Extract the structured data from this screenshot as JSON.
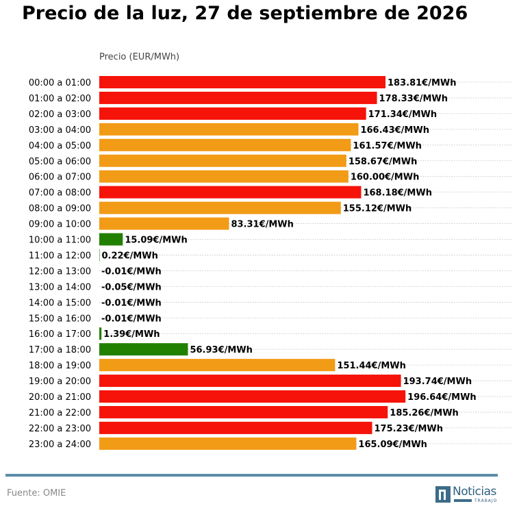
{
  "header": {
    "title": "Precio de la luz, 27 de septiembre de 2026"
  },
  "footer": {
    "source": "Fuente: OMIE",
    "logo_text": "Noticias",
    "logo_subtext": "TRABAJO"
  },
  "colors": {
    "high": "#f5130a",
    "mid": "#f29b16",
    "low": "#228000",
    "rule": "#5b8ca8"
  },
  "chart_data": {
    "type": "bar",
    "orientation": "horizontal",
    "title": "Precio de la luz, 27 de septiembre de 2026",
    "xlabel": "Precio (EUR/MWh)",
    "xlim": [
      0,
      230
    ],
    "grid": "horizontal dotted",
    "value_suffix": "€/MWh",
    "categories": [
      "00:00 a 01:00",
      "01:00 a 02:00",
      "02:00 a 03:00",
      "03:00 a 04:00",
      "04:00 a 05:00",
      "05:00 a 06:00",
      "06:00 a 07:00",
      "07:00 a 08:00",
      "08:00 a 09:00",
      "09:00 a 10:00",
      "10:00 a 11:00",
      "11:00 a 12:00",
      "12:00 a 13:00",
      "13:00 a 14:00",
      "14:00 a 15:00",
      "15:00 a 16:00",
      "16:00 a 17:00",
      "17:00 a 18:00",
      "18:00 a 19:00",
      "19:00 a 20:00",
      "20:00 a 21:00",
      "21:00 a 22:00",
      "22:00 a 23:00",
      "23:00 a 24:00"
    ],
    "values": [
      183.81,
      178.33,
      171.34,
      166.43,
      161.57,
      158.67,
      160.0,
      168.18,
      155.12,
      83.31,
      15.09,
      0.22,
      -0.01,
      -0.05,
      -0.01,
      -0.01,
      1.39,
      56.93,
      151.44,
      193.74,
      196.64,
      185.26,
      175.23,
      165.09
    ],
    "value_labels": [
      "183.81€/MWh",
      "178.33€/MWh",
      "171.34€/MWh",
      "166.43€/MWh",
      "161.57€/MWh",
      "158.67€/MWh",
      "160.00€/MWh",
      "168.18€/MWh",
      "155.12€/MWh",
      "83.31€/MWh",
      "15.09€/MWh",
      "0.22€/MWh",
      "-0.01€/MWh",
      "-0.05€/MWh",
      "-0.01€/MWh",
      "-0.01€/MWh",
      "1.39€/MWh",
      "56.93€/MWh",
      "151.44€/MWh",
      "193.74€/MWh",
      "196.64€/MWh",
      "185.26€/MWh",
      "175.23€/MWh",
      "165.09€/MWh"
    ],
    "bar_colors": [
      "high",
      "high",
      "high",
      "mid",
      "mid",
      "mid",
      "mid",
      "high",
      "mid",
      "mid",
      "low",
      "low",
      "low",
      "low",
      "low",
      "low",
      "low",
      "low",
      "mid",
      "high",
      "high",
      "high",
      "high",
      "mid"
    ]
  }
}
